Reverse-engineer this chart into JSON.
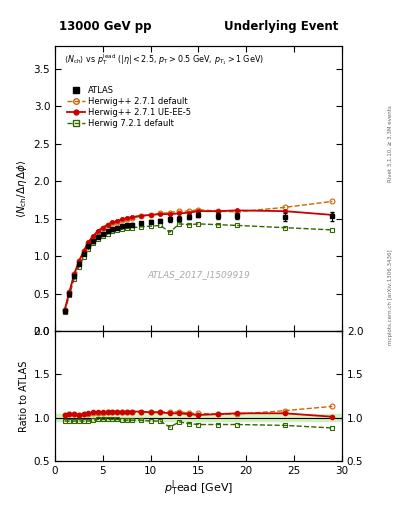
{
  "title_left": "13000 GeV pp",
  "title_right": "Underlying Event",
  "xlabel": "$p_{\\mathrm{T}}^{\\mathrm{l}}$ead [GeV]",
  "ylabel_main": "$\\langle N_{\\mathrm{ch}}/ \\Delta\\eta\\,\\Delta\\phi \\rangle$",
  "ylabel_ratio": "Ratio to ATLAS",
  "annotation": "$\\langle N_{\\mathrm{ch}}\\rangle$ vs $p_{\\mathrm{T}}^{\\mathrm{lead}}$ ($|\\eta| < 2.5$, $p_{\\mathrm{T}} > 0.5$ GeV, $p_{T_1} > 1$ GeV)",
  "watermark": "ATLAS_2017_I1509919",
  "right_label": "Rivet 3.1.10, ≥ 3.3M events",
  "right_label2": "mcplots.cern.ch [arXiv:1306.3436]",
  "atlas_x": [
    1.0,
    1.5,
    2.0,
    2.5,
    3.0,
    3.5,
    4.0,
    4.5,
    5.0,
    5.5,
    6.0,
    6.5,
    7.0,
    7.5,
    8.0,
    9.0,
    10.0,
    11.0,
    12.0,
    13.0,
    14.0,
    15.0,
    17.0,
    19.0,
    24.0,
    29.0
  ],
  "atlas_y": [
    0.27,
    0.5,
    0.73,
    0.9,
    1.03,
    1.13,
    1.2,
    1.26,
    1.3,
    1.33,
    1.36,
    1.38,
    1.4,
    1.41,
    1.42,
    1.44,
    1.46,
    1.47,
    1.49,
    1.5,
    1.52,
    1.55,
    1.54,
    1.53,
    1.52,
    1.53
  ],
  "atlas_yerr": [
    0.02,
    0.02,
    0.02,
    0.02,
    0.02,
    0.02,
    0.02,
    0.02,
    0.02,
    0.02,
    0.02,
    0.02,
    0.02,
    0.02,
    0.02,
    0.02,
    0.02,
    0.02,
    0.03,
    0.03,
    0.03,
    0.03,
    0.04,
    0.04,
    0.05,
    0.06
  ],
  "hw271def_x": [
    1.0,
    1.5,
    2.0,
    2.5,
    3.0,
    3.5,
    4.0,
    4.5,
    5.0,
    5.5,
    6.0,
    6.5,
    7.0,
    7.5,
    8.0,
    9.0,
    10.0,
    11.0,
    12.0,
    13.0,
    14.0,
    15.0,
    17.0,
    19.0,
    24.0,
    29.0
  ],
  "hw271def_y": [
    0.28,
    0.52,
    0.76,
    0.93,
    1.07,
    1.18,
    1.26,
    1.32,
    1.37,
    1.41,
    1.44,
    1.46,
    1.48,
    1.5,
    1.51,
    1.53,
    1.55,
    1.57,
    1.58,
    1.6,
    1.6,
    1.62,
    1.6,
    1.59,
    1.65,
    1.73
  ],
  "hw271ue_x": [
    1.0,
    1.5,
    2.0,
    2.5,
    3.0,
    3.5,
    4.0,
    4.5,
    5.0,
    5.5,
    6.0,
    6.5,
    7.0,
    7.5,
    8.0,
    9.0,
    10.0,
    11.0,
    12.0,
    13.0,
    14.0,
    15.0,
    17.0,
    19.0,
    24.0,
    29.0
  ],
  "hw271ue_y": [
    0.28,
    0.52,
    0.76,
    0.93,
    1.07,
    1.19,
    1.27,
    1.34,
    1.38,
    1.42,
    1.45,
    1.47,
    1.49,
    1.51,
    1.52,
    1.54,
    1.55,
    1.56,
    1.56,
    1.57,
    1.58,
    1.6,
    1.6,
    1.61,
    1.6,
    1.55
  ],
  "hw721def_x": [
    1.0,
    1.5,
    2.0,
    2.5,
    3.0,
    3.5,
    4.0,
    4.5,
    5.0,
    5.5,
    6.0,
    6.5,
    7.0,
    7.5,
    8.0,
    9.0,
    10.0,
    11.0,
    12.0,
    13.0,
    14.0,
    15.0,
    17.0,
    19.0,
    24.0,
    29.0
  ],
  "hw721def_y": [
    0.26,
    0.48,
    0.7,
    0.86,
    0.99,
    1.09,
    1.17,
    1.23,
    1.27,
    1.3,
    1.33,
    1.35,
    1.36,
    1.37,
    1.38,
    1.39,
    1.4,
    1.41,
    1.32,
    1.43,
    1.42,
    1.43,
    1.42,
    1.41,
    1.38,
    1.35
  ],
  "ratio_hw271def_y": [
    1.03,
    1.04,
    1.04,
    1.03,
    1.04,
    1.04,
    1.05,
    1.05,
    1.05,
    1.06,
    1.06,
    1.06,
    1.06,
    1.06,
    1.06,
    1.06,
    1.06,
    1.07,
    1.06,
    1.07,
    1.05,
    1.05,
    1.04,
    1.04,
    1.08,
    1.13
  ],
  "ratio_hw271ue_y": [
    1.03,
    1.04,
    1.04,
    1.03,
    1.04,
    1.05,
    1.06,
    1.06,
    1.06,
    1.07,
    1.07,
    1.07,
    1.06,
    1.07,
    1.07,
    1.07,
    1.06,
    1.06,
    1.05,
    1.05,
    1.04,
    1.03,
    1.04,
    1.05,
    1.05,
    1.01
  ],
  "ratio_hw721def_y": [
    0.96,
    0.96,
    0.96,
    0.96,
    0.96,
    0.96,
    0.97,
    0.98,
    0.98,
    0.98,
    0.98,
    0.98,
    0.97,
    0.97,
    0.97,
    0.97,
    0.96,
    0.96,
    0.89,
    0.95,
    0.93,
    0.92,
    0.92,
    0.92,
    0.91,
    0.88
  ],
  "color_atlas": "#000000",
  "color_hw271def": "#cc6600",
  "color_hw271ue": "#cc0000",
  "color_hw721def": "#336600",
  "xlim": [
    0,
    30
  ],
  "ylim_main": [
    0,
    3.8
  ],
  "ylim_ratio": [
    0.5,
    2.0
  ],
  "yticks_main": [
    0.0,
    0.5,
    1.0,
    1.5,
    2.0,
    2.5,
    3.0,
    3.5
  ],
  "yticks_ratio": [
    0.5,
    1.0,
    1.5,
    2.0
  ],
  "xticks": [
    0,
    5,
    10,
    15,
    20,
    25,
    30
  ]
}
